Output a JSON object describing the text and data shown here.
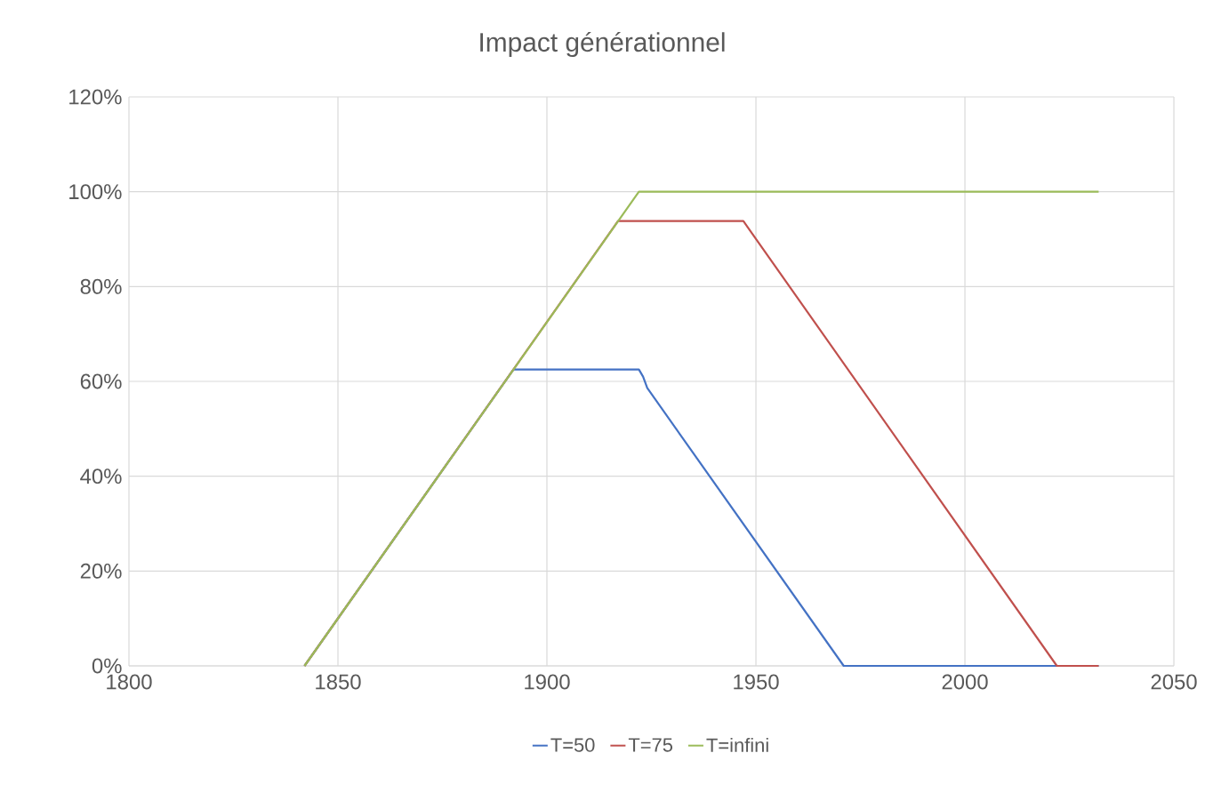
{
  "chart_data": {
    "type": "line",
    "title": "Impact générationnel",
    "xlim": [
      1800,
      2050
    ],
    "xticks": [
      1800,
      1850,
      1900,
      1950,
      2000,
      2050
    ],
    "ylim": [
      0,
      120
    ],
    "yticks": [
      {
        "value": 0,
        "label": "0%"
      },
      {
        "value": 20,
        "label": "20%"
      },
      {
        "value": 40,
        "label": "40%"
      },
      {
        "value": 60,
        "label": "60%"
      },
      {
        "value": 80,
        "label": "80%"
      },
      {
        "value": 100,
        "label": "100%"
      },
      {
        "value": 120,
        "label": "120%"
      }
    ],
    "grid": true,
    "legend": "bottom",
    "marker": "none",
    "line_style": "solid",
    "series": [
      {
        "name": "T=50",
        "color": "#4472c4",
        "x": [
          1842,
          1892,
          1922,
          1923,
          1924,
          1971,
          2032
        ],
        "values": [
          0,
          62.5,
          62.5,
          61,
          58.6,
          0,
          0
        ]
      },
      {
        "name": "T=75",
        "color": "#c0504d",
        "x": [
          1842,
          1917,
          1947,
          2022,
          2032
        ],
        "values": [
          0,
          93.8,
          93.8,
          0,
          0
        ]
      },
      {
        "name": "T=infini",
        "color": "#9bbb59",
        "x": [
          1842,
          1922,
          2032
        ],
        "values": [
          0,
          100,
          100
        ]
      }
    ]
  }
}
